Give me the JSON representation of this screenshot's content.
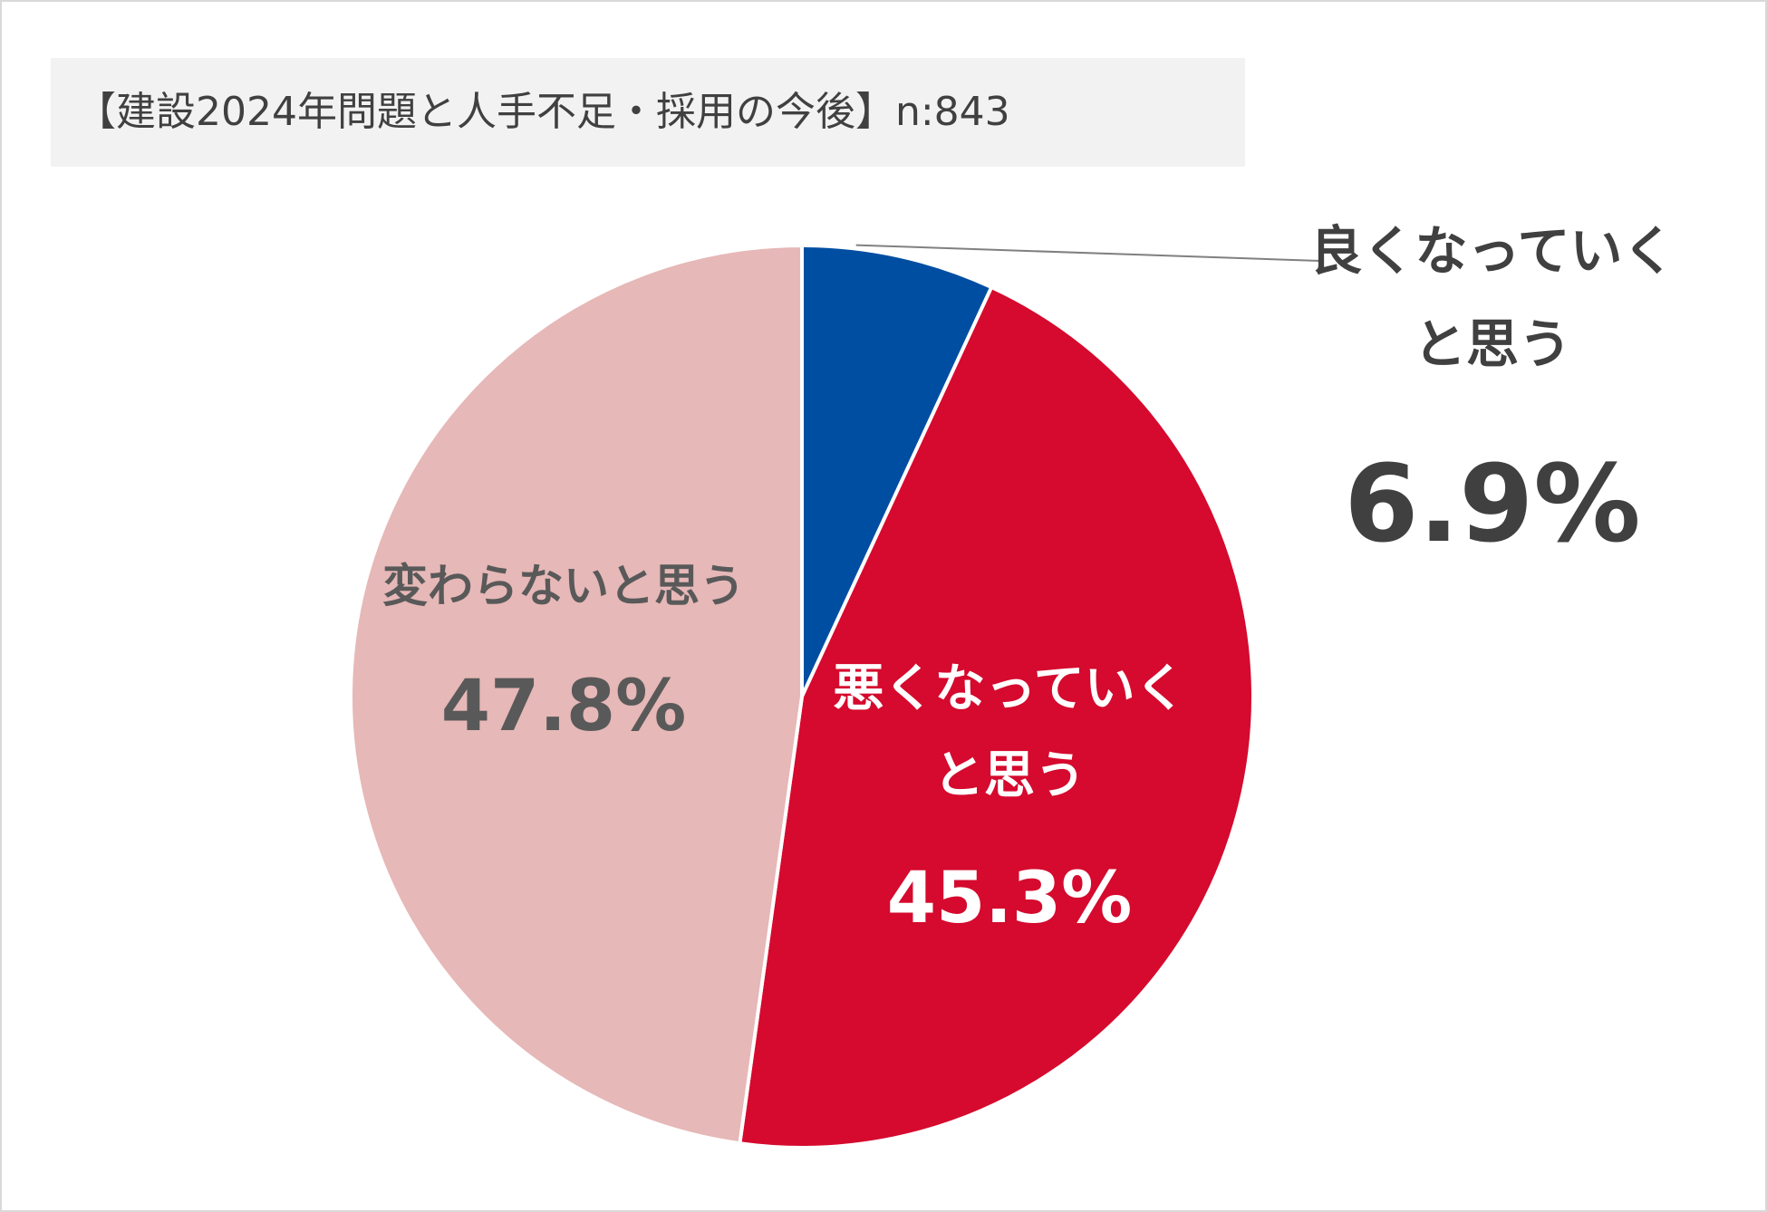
{
  "title": "【建設2024年問題と人手不足・採用の今後】n:843",
  "chart_data": {
    "type": "pie",
    "title": "【建設2024年問題と人手不足・採用の今後】n:843",
    "n": 843,
    "start_angle_deg": 0,
    "direction": "clockwise",
    "slices": [
      {
        "label_lines": [
          "良くなっていく",
          "と思う"
        ],
        "value": 6.9,
        "value_label": "6.9%",
        "color": "#004ea2",
        "label_color": "#404040",
        "label_position": "outside-right-with-leader"
      },
      {
        "label_lines": [
          "悪くなっていく",
          "と思う"
        ],
        "value": 45.3,
        "value_label": "45.3%",
        "color": "#d50a2e",
        "label_color": "#ffffff",
        "label_position": "inside"
      },
      {
        "label_lines": [
          "変わらないと思う"
        ],
        "value": 47.8,
        "value_label": "47.8%",
        "color": "#e6b8b7",
        "label_color": "#595959",
        "label_position": "inside"
      }
    ]
  }
}
